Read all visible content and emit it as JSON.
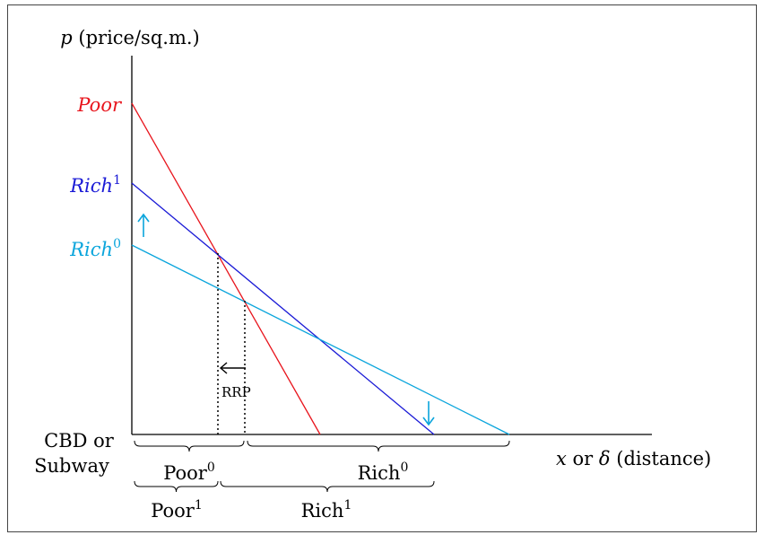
{
  "axes": {
    "y_label": {
      "var": "p",
      "text": "(price/sq.m.)"
    },
    "x_label": {
      "var": "x",
      "or": "or",
      "var2": "δ",
      "text": "(distance)"
    },
    "origin_label": [
      "CBD or",
      "Subway"
    ]
  },
  "curves": [
    {
      "name": "Poor"
    },
    {
      "name": "Rich",
      "sup": "1"
    },
    {
      "name": "Rich",
      "sup": "0"
    }
  ],
  "rrp": "RRP",
  "zones": [
    {
      "name": "Poor",
      "sup": "0"
    },
    {
      "name": "Rich",
      "sup": "0"
    },
    {
      "name": "Poor",
      "sup": "1"
    },
    {
      "name": "Rich",
      "sup": "1"
    }
  ]
}
